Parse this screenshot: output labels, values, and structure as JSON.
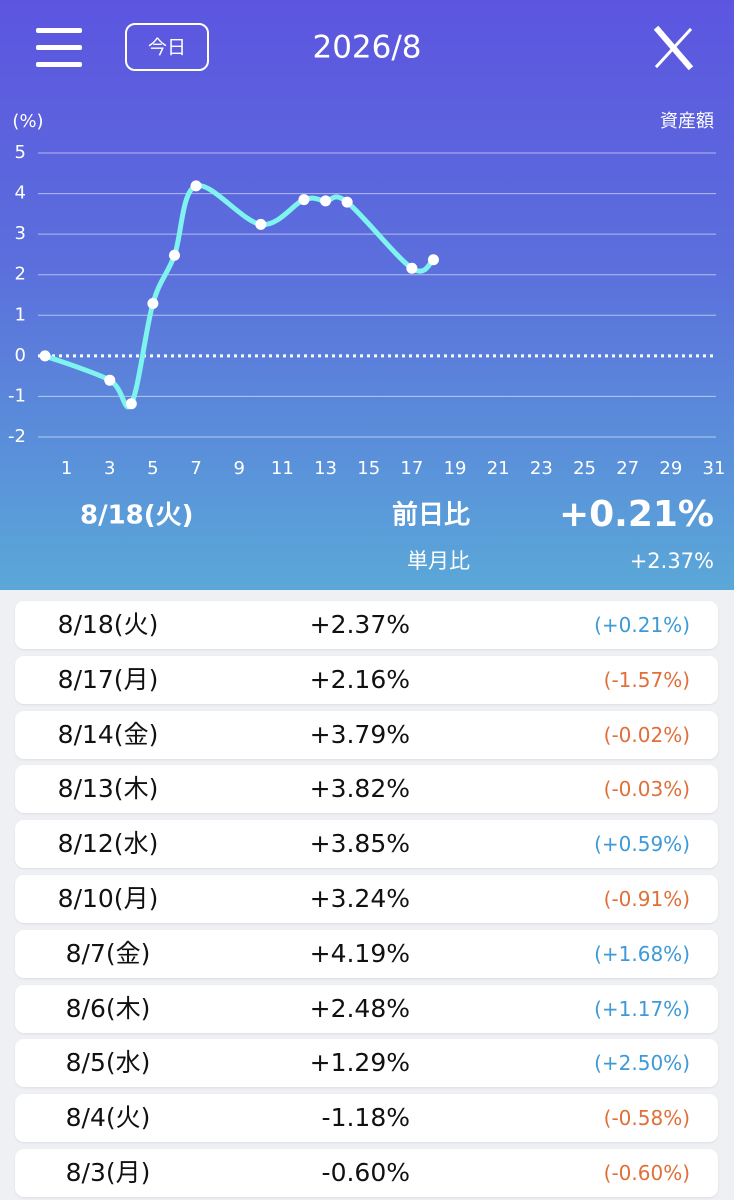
{
  "header": {
    "today_button": "今日",
    "title": "2026/8"
  },
  "chart_data": {
    "type": "line",
    "y_label": "(%)",
    "toggle_label": "資産額",
    "x": [
      0,
      3,
      4,
      5,
      6,
      7,
      10,
      12,
      13,
      14,
      17,
      18
    ],
    "series": [
      {
        "color": "#7ff3ee",
        "values": [
          0,
          -0.6,
          -1.18,
          1.29,
          2.48,
          4.19,
          3.24,
          3.85,
          3.82,
          3.79,
          2.16,
          2.37
        ]
      }
    ],
    "xlim": [
      0,
      31
    ],
    "xticks": [
      1,
      3,
      5,
      7,
      9,
      11,
      13,
      15,
      17,
      19,
      21,
      23,
      25,
      27,
      29,
      31
    ],
    "ylim": [
      -2,
      5
    ],
    "yticks": [
      -2,
      -1,
      0,
      1,
      2,
      3,
      4,
      5
    ],
    "grid": true
  },
  "summary": {
    "date": "8/18(火)",
    "daily_label": "前日比",
    "daily_value": "+0.21%",
    "monthly_label": "単月比",
    "monthly_value": "+2.37%"
  },
  "table": {
    "positive_color": "#3d9ad6",
    "negative_color": "#e0703a",
    "rows": [
      [
        "8/18(火)",
        "+2.37%",
        "(+0.21%)"
      ],
      [
        "8/17(月)",
        "+2.16%",
        "(-1.57%)"
      ],
      [
        "8/14(金)",
        "+3.79%",
        "(-0.02%)"
      ],
      [
        "8/13(木)",
        "+3.82%",
        "(-0.03%)"
      ],
      [
        "8/12(水)",
        "+3.85%",
        "(+0.59%)"
      ],
      [
        "8/10(月)",
        "+3.24%",
        "(-0.91%)"
      ],
      [
        "8/7(金)",
        "+4.19%",
        "(+1.68%)"
      ],
      [
        "8/6(木)",
        "+2.48%",
        "(+1.17%)"
      ],
      [
        "8/5(水)",
        "+1.29%",
        "(+2.50%)"
      ],
      [
        "8/4(火)",
        "-1.18%",
        "(-0.58%)"
      ],
      [
        "8/3(月)",
        "-0.60%",
        "(-0.60%)"
      ]
    ]
  }
}
